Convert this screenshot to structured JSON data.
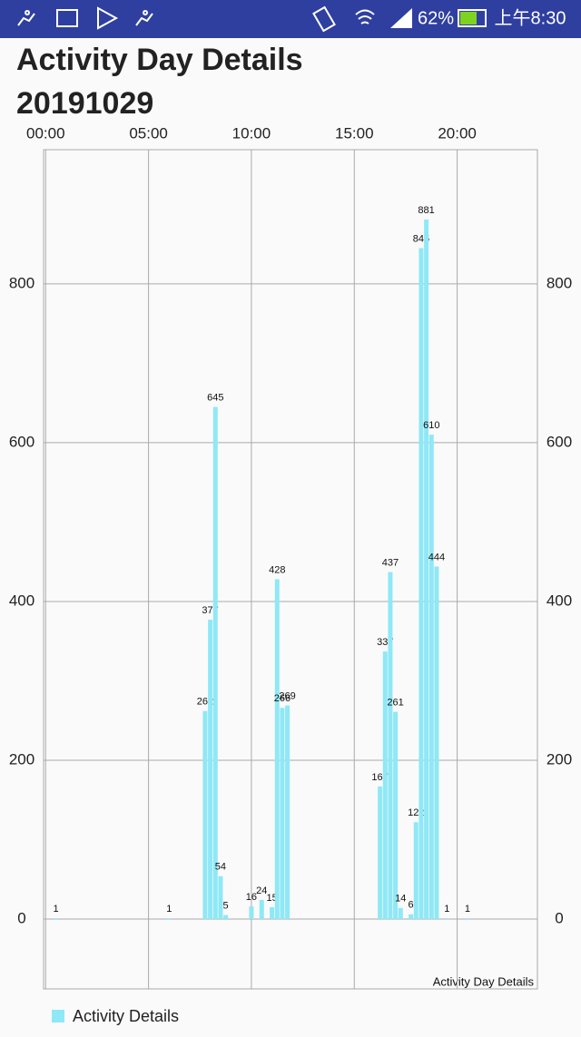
{
  "status_bar": {
    "battery": "62%",
    "time": "上午8:30"
  },
  "chart_data": {
    "type": "bar",
    "title": "Activity Day Details",
    "subtitle": "20191029",
    "description": "Activity Day Details",
    "x": [
      0.5,
      6.0,
      7.75,
      8.0,
      8.25,
      8.5,
      8.75,
      10.0,
      10.5,
      11.0,
      11.25,
      11.5,
      11.75,
      16.25,
      16.5,
      16.75,
      17.0,
      17.25,
      17.75,
      18.0,
      18.25,
      18.5,
      18.75,
      19.0,
      19.5,
      20.5
    ],
    "series": [
      {
        "name": "Activity Details",
        "color": "#8fe8f6",
        "values": [
          1,
          1,
          262,
          377,
          645,
          54,
          5,
          16,
          24,
          15,
          428,
          266,
          269,
          167,
          337,
          437,
          261,
          14,
          6,
          122,
          845,
          881,
          610,
          444,
          1,
          1
        ]
      }
    ],
    "xlim": [
      -0.1,
      23.9
    ],
    "xticks": [
      {
        "value": 0,
        "label": "00:00"
      },
      {
        "value": 5,
        "label": "05:00"
      },
      {
        "value": 10,
        "label": "10:00"
      },
      {
        "value": 15,
        "label": "15:00"
      },
      {
        "value": 20,
        "label": "20:00"
      }
    ],
    "ylim": [
      -88,
      969
    ],
    "yticks": [
      0,
      200,
      400,
      600,
      800
    ],
    "grid": true,
    "legend": "bottom-left"
  }
}
